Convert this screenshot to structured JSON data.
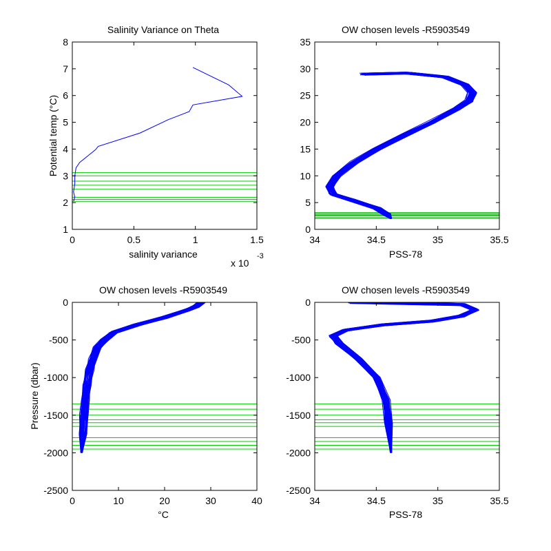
{
  "colors": {
    "profile": "#0000ff",
    "levels": "#00cc00",
    "axis": "#000000",
    "background": "#ffffff"
  },
  "chart_data": [
    {
      "id": "tl",
      "type": "line",
      "title": "Salinity Variance on Theta",
      "xlabel": "salinity variance",
      "ylabel": "Potential temp (°C)",
      "x_exponent_label": "x 10",
      "x_exponent_power": "-3",
      "xlim": [
        0,
        1.5
      ],
      "ylim": [
        1,
        8
      ],
      "xticks": [
        0,
        0.5,
        1,
        1.5
      ],
      "xtick_labels": [
        "0",
        "0.5",
        "1",
        "1.5"
      ],
      "yticks": [
        1,
        2,
        3,
        4,
        5,
        6,
        7,
        8
      ],
      "ytick_labels": [
        "1",
        "2",
        "3",
        "4",
        "5",
        "6",
        "7",
        "8"
      ],
      "grid": false,
      "series": [
        {
          "x": [
            0.98,
            1.27,
            1.38,
            0.98,
            0.95,
            0.78,
            0.55,
            0.21,
            0.19,
            0.06,
            0.03,
            0.02,
            0.02,
            0.01,
            0.02,
            0.01
          ],
          "y": [
            7.05,
            6.4,
            5.97,
            5.65,
            5.4,
            5.1,
            4.6,
            4.1,
            3.98,
            3.5,
            3.3,
            3.0,
            2.7,
            2.4,
            2.2,
            2.05
          ]
        }
      ],
      "chosen_levels": [
        2.05,
        2.12,
        2.2,
        2.5,
        2.65,
        2.8,
        3.0,
        3.12
      ]
    },
    {
      "id": "tr",
      "type": "line",
      "title": "OW chosen levels -R5903549",
      "xlabel": "PSS-78",
      "ylabel": "",
      "xlim": [
        34,
        35.5
      ],
      "ylim": [
        0,
        35
      ],
      "xticks": [
        34,
        34.5,
        35,
        35.5
      ],
      "xtick_labels": [
        "34",
        "34.5",
        "35",
        "35.5"
      ],
      "yticks": [
        0,
        5,
        10,
        15,
        20,
        25,
        30,
        35
      ],
      "ytick_labels": [
        "0",
        "5",
        "10",
        "15",
        "20",
        "25",
        "30",
        "35"
      ],
      "grid": false,
      "profile_count": 40,
      "base_profile": {
        "x": [
          34.4,
          34.75,
          35.05,
          35.22,
          35.28,
          35.25,
          35.15,
          34.95,
          34.72,
          34.5,
          34.32,
          34.18,
          34.12,
          34.15,
          34.3,
          34.5,
          34.58,
          34.62
        ],
        "y": [
          29,
          29.2,
          28.5,
          27,
          25.5,
          24,
          22.5,
          20,
          17.5,
          15,
          12.5,
          10,
          8,
          6.5,
          5.5,
          4,
          2.8,
          2
        ]
      },
      "chosen_levels": [
        2.05,
        2.2,
        2.5,
        2.65,
        2.8,
        3.0,
        3.12
      ]
    },
    {
      "id": "bl",
      "type": "line",
      "title": "OW chosen levels -R5903549",
      "xlabel": "°C",
      "ylabel": "Pressure (dbar)",
      "xlim": [
        0,
        40
      ],
      "ylim": [
        -2500,
        0
      ],
      "xticks": [
        0,
        10,
        20,
        30,
        40
      ],
      "xtick_labels": [
        "0",
        "10",
        "20",
        "30",
        "40"
      ],
      "yticks": [
        -2500,
        -2000,
        -1500,
        -1000,
        -500,
        0
      ],
      "ytick_labels": [
        "-2500",
        "-2000",
        "-1500",
        "-1000",
        "-500",
        "0"
      ],
      "grid": false,
      "profile_count": 40,
      "base_profile": {
        "x": [
          28,
          27,
          25,
          20,
          14,
          9,
          7,
          5.5,
          4.5,
          3.8,
          3.2,
          2.8,
          2.5,
          2.2,
          2.0
        ],
        "y": [
          0,
          -50,
          -100,
          -200,
          -300,
          -400,
          -500,
          -600,
          -750,
          -900,
          -1100,
          -1300,
          -1500,
          -1750,
          -2000
        ]
      },
      "chosen_levels": [
        -1350,
        -1420,
        -1500,
        -1560,
        -1600,
        -1650,
        -1800,
        -1850,
        -1900,
        -1950
      ]
    },
    {
      "id": "br",
      "type": "line",
      "title": "OW chosen levels -R5903549",
      "xlabel": "PSS-78",
      "ylabel": "",
      "xlim": [
        34,
        35.5
      ],
      "ylim": [
        -2500,
        0
      ],
      "xticks": [
        34,
        34.5,
        35,
        35.5
      ],
      "xtick_labels": [
        "34",
        "34.5",
        "35",
        "35.5"
      ],
      "yticks": [
        -2500,
        -2000,
        -1500,
        -1000,
        -500,
        0
      ],
      "ytick_labels": [
        "-2500",
        "-2000",
        "-1500",
        "-1000",
        "-500",
        "0"
      ],
      "grid": false,
      "profile_count": 40,
      "base_profile": {
        "x": [
          34.3,
          35.2,
          35.3,
          35.2,
          34.95,
          34.55,
          34.25,
          34.15,
          34.2,
          34.35,
          34.5,
          34.58,
          34.6,
          34.62
        ],
        "y": [
          0,
          -30,
          -100,
          -180,
          -250,
          -300,
          -370,
          -450,
          -550,
          -750,
          -1000,
          -1300,
          -1600,
          -2000
        ]
      },
      "chosen_levels": [
        -1350,
        -1420,
        -1500,
        -1560,
        -1600,
        -1650,
        -1800,
        -1850,
        -1900,
        -1950
      ]
    }
  ]
}
